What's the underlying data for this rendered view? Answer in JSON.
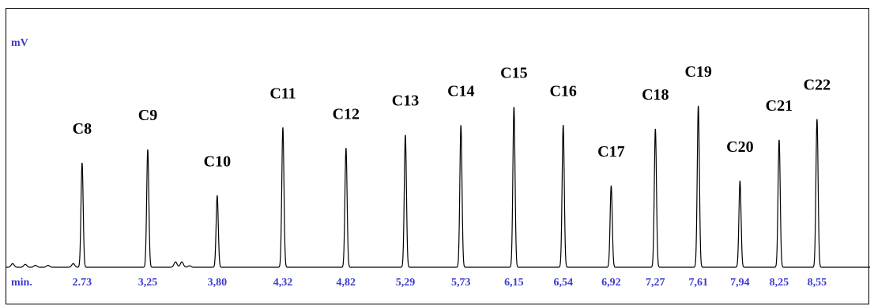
{
  "chart_data": {
    "type": "line",
    "ylabel": "mV",
    "x_axis_prefix": "min.",
    "xlabel": "",
    "x_range": [
      2.13,
      8.97
    ],
    "y_range": [
      0,
      100
    ],
    "x_ticks": [
      "2.73",
      "3,25",
      "3,80",
      "4,32",
      "4,82",
      "5,29",
      "5,73",
      "6,15",
      "6,54",
      "6,92",
      "7,27",
      "7,61",
      "7,94",
      "8,25",
      "8,55"
    ],
    "tick_values": [
      2.73,
      3.25,
      3.8,
      4.32,
      4.82,
      5.29,
      5.73,
      6.15,
      6.54,
      6.92,
      7.27,
      7.61,
      7.94,
      8.25,
      8.55
    ],
    "peaks": [
      {
        "label": "C8",
        "x": 2.73,
        "height": 43
      },
      {
        "label": "C9",
        "x": 3.25,
        "height": 48.5
      },
      {
        "label": "C10",
        "x": 3.8,
        "height": 29.5
      },
      {
        "label": "C11",
        "x": 4.32,
        "height": 57.5
      },
      {
        "label": "C12",
        "x": 4.82,
        "height": 49
      },
      {
        "label": "C13",
        "x": 5.29,
        "height": 54.5
      },
      {
        "label": "C14",
        "x": 5.73,
        "height": 58.5
      },
      {
        "label": "C15",
        "x": 6.15,
        "height": 66
      },
      {
        "label": "C16",
        "x": 6.54,
        "height": 58.5
      },
      {
        "label": "C17",
        "x": 6.92,
        "height": 33.5
      },
      {
        "label": "C18",
        "x": 7.27,
        "height": 57
      },
      {
        "label": "C19",
        "x": 7.61,
        "height": 66.5
      },
      {
        "label": "C20",
        "x": 7.94,
        "height": 35.5
      },
      {
        "label": "C21",
        "x": 8.25,
        "height": 52.5
      },
      {
        "label": "C22",
        "x": 8.55,
        "height": 61
      }
    ],
    "minor_peaks": [
      {
        "x": 2.18,
        "height": 1.5
      },
      {
        "x": 2.28,
        "height": 1.2
      },
      {
        "x": 2.36,
        "height": 0.8
      },
      {
        "x": 2.46,
        "height": 0.8
      },
      {
        "x": 2.66,
        "height": 1.5
      },
      {
        "x": 3.47,
        "height": 2.2
      },
      {
        "x": 3.52,
        "height": 2.2
      },
      {
        "x": 3.58,
        "height": 0.6
      }
    ],
    "grid": false,
    "legend": "none"
  }
}
